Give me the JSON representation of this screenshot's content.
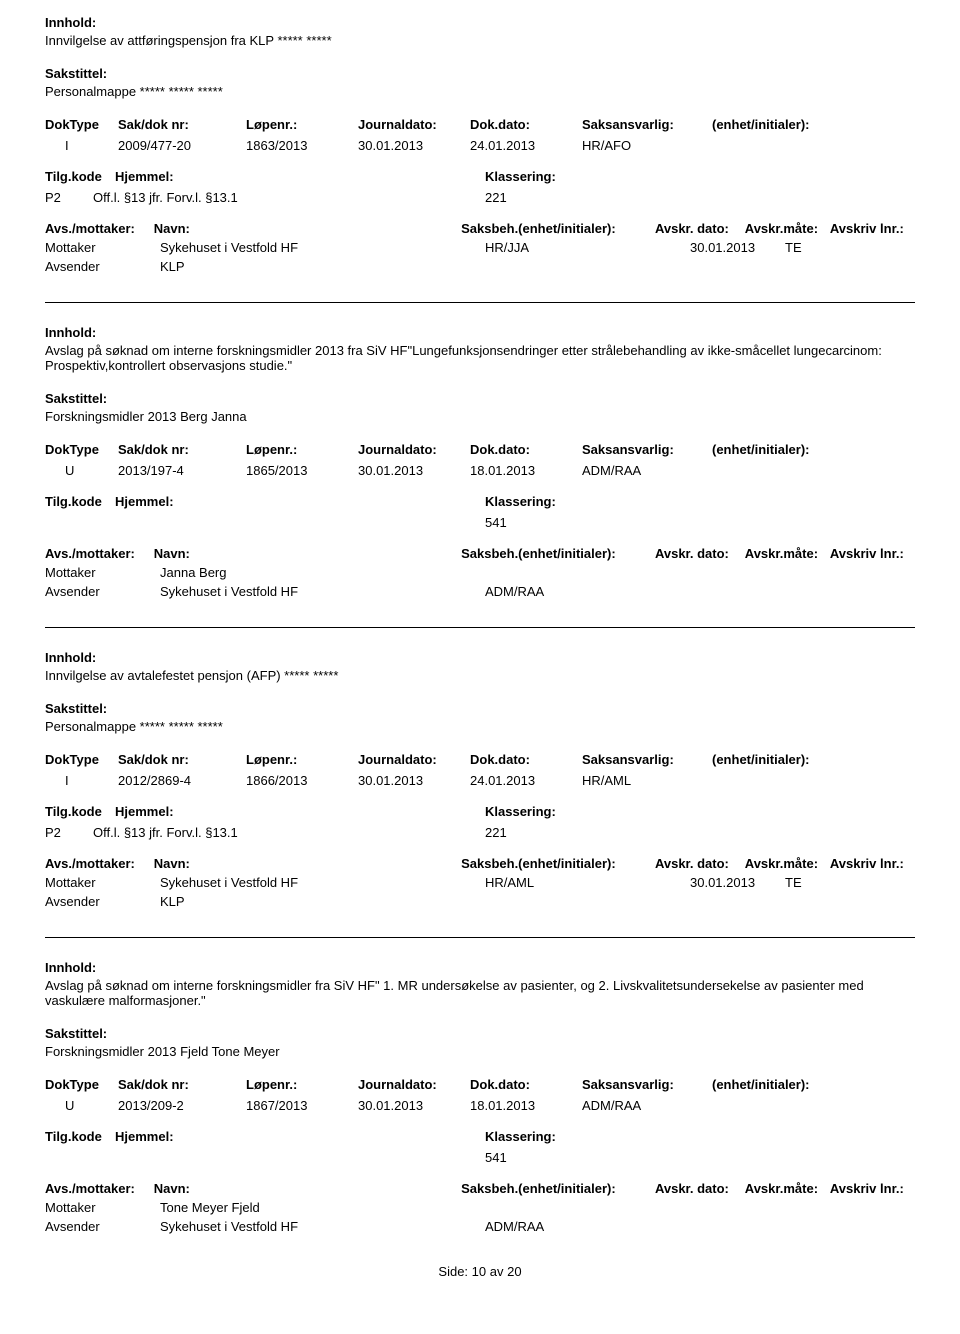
{
  "labels": {
    "innhold": "Innhold:",
    "sakstittel": "Sakstittel:",
    "doktype": "DokType",
    "sakdok": "Sak/dok nr:",
    "lopenr": "Løpenr.:",
    "journaldato": "Journaldato:",
    "dokdato": "Dok.dato:",
    "saksansvarlig": "Saksansvarlig:",
    "enhet": "(enhet/initialer):",
    "tilgkode": "Tilg.kode",
    "hjemmel": "Hjemmel:",
    "klassering": "Klassering:",
    "avsmottaker": "Avs./mottaker:",
    "navn": "Navn:",
    "saksbeh": "Saksbeh.(enhet/initialer):",
    "avskrdato": "Avskr. dato:",
    "avskrmate": "Avskr.måte:",
    "avskrlnr": "Avskriv lnr.:",
    "mottaker": "Mottaker",
    "avsender": "Avsender",
    "side": "Side:",
    "av": "av"
  },
  "records": [
    {
      "innhold": "Innvilgelse av attføringspensjon fra KLP ***** *****",
      "sakstittel": "Personalmappe ***** ***** *****",
      "doktype": "I",
      "sakdok": "2009/477-20",
      "lopenr": "1863/2013",
      "journaldato": "30.01.2013",
      "dokdato": "24.01.2013",
      "saksansvarlig": "HR/AFO",
      "tilgkode": "P2",
      "hjemmel": "Off.l. §13 jfr. Forv.l. §13.1",
      "klassering": "221",
      "parties": [
        {
          "role": "Mottaker",
          "navn": "Sykehuset i Vestfold HF",
          "saksbeh": "HR/JJA",
          "avskrdato": "30.01.2013",
          "avskrmate": "TE"
        },
        {
          "role": "Avsender",
          "navn": "KLP",
          "saksbeh": "",
          "avskrdato": "",
          "avskrmate": ""
        }
      ]
    },
    {
      "innhold": "Avslag på søknad om interne forskningsmidler 2013 fra SiV HF\"Lungefunksjonsendringer etter strålebehandling av ikke-småcellet lungecarcinom: Prospektiv,kontrollert observasjons studie.\"",
      "sakstittel": "Forskningsmidler 2013 Berg Janna",
      "doktype": "U",
      "sakdok": "2013/197-4",
      "lopenr": "1865/2013",
      "journaldato": "30.01.2013",
      "dokdato": "18.01.2013",
      "saksansvarlig": "ADM/RAA",
      "tilgkode": "",
      "hjemmel": "",
      "klassering": "541",
      "parties": [
        {
          "role": "Mottaker",
          "navn": "Janna Berg",
          "saksbeh": "",
          "avskrdato": "",
          "avskrmate": ""
        },
        {
          "role": "Avsender",
          "navn": "Sykehuset i Vestfold HF",
          "saksbeh": "ADM/RAA",
          "avskrdato": "",
          "avskrmate": ""
        }
      ]
    },
    {
      "innhold": "Innvilgelse av avtalefestet pensjon (AFP) ***** *****",
      "sakstittel": "Personalmappe ***** ***** *****",
      "doktype": "I",
      "sakdok": "2012/2869-4",
      "lopenr": "1866/2013",
      "journaldato": "30.01.2013",
      "dokdato": "24.01.2013",
      "saksansvarlig": "HR/AML",
      "tilgkode": "P2",
      "hjemmel": "Off.l. §13 jfr. Forv.l. §13.1",
      "klassering": "221",
      "parties": [
        {
          "role": "Mottaker",
          "navn": "Sykehuset i Vestfold HF",
          "saksbeh": "HR/AML",
          "avskrdato": "30.01.2013",
          "avskrmate": "TE"
        },
        {
          "role": "Avsender",
          "navn": "KLP",
          "saksbeh": "",
          "avskrdato": "",
          "avskrmate": ""
        }
      ]
    },
    {
      "innhold": "Avslag på søknad om interne forskningsmidler fra SiV HF\" 1. MR undersøkelse av pasienter, og 2. Livskvalitetsundersekelse av pasienter med vaskulære malformasjoner.\"",
      "sakstittel": "Forskningsmidler 2013 Fjeld Tone Meyer",
      "doktype": "U",
      "sakdok": "2013/209-2",
      "lopenr": "1867/2013",
      "journaldato": "30.01.2013",
      "dokdato": "18.01.2013",
      "saksansvarlig": "ADM/RAA",
      "tilgkode": "",
      "hjemmel": "",
      "klassering": "541",
      "parties": [
        {
          "role": "Mottaker",
          "navn": "Tone Meyer Fjeld",
          "saksbeh": "",
          "avskrdato": "",
          "avskrmate": ""
        },
        {
          "role": "Avsender",
          "navn": "Sykehuset i Vestfold HF",
          "saksbeh": "ADM/RAA",
          "avskrdato": "",
          "avskrmate": ""
        }
      ]
    }
  ],
  "footer": {
    "page_current": "10",
    "page_total": "20"
  }
}
